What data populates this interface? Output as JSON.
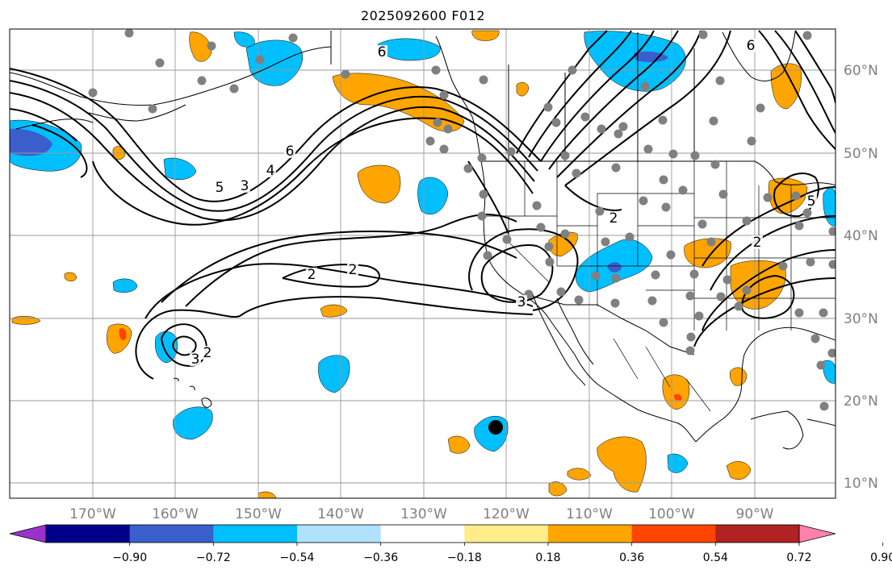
{
  "title": "2025092600 F012",
  "longitude_labels": [
    "170°W",
    "160°W",
    "150°W",
    "140°W",
    "130°W",
    "120°W",
    "110°W",
    "100°W",
    "90°W"
  ],
  "latitude_labels": [
    "60°N",
    "50°N",
    "40°N",
    "30°N",
    "20°N",
    "10°N"
  ],
  "colorbar": {
    "ticks": [
      "−0.90",
      "−0.72",
      "−0.54",
      "−0.36",
      "−0.18",
      "0.18",
      "0.36",
      "0.54",
      "0.72",
      "0.90"
    ],
    "colors": [
      "#9932cc",
      "#00008b",
      "#3a5fcd",
      "#00bfff",
      "#b0e2ff",
      "#ffffff",
      "#ffec8b",
      "#ffa500",
      "#ff4500",
      "#b22222",
      "#ff82ab"
    ]
  },
  "contour_labels": [
    "6",
    "5",
    "3",
    "4",
    "2",
    "2",
    "2",
    "3",
    "3",
    "2",
    "2",
    "5",
    "6",
    "6"
  ],
  "colors": {
    "land_line": "#000000",
    "grid": "#999999",
    "station_dot": "#808080",
    "storm_marker": "#000000"
  }
}
